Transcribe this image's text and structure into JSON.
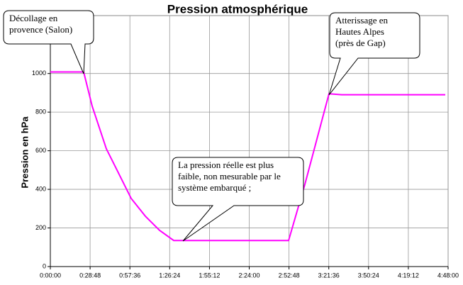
{
  "chart_data": {
    "type": "line",
    "title": "Pression atmosphérique",
    "ylabel": "Pression en hPa",
    "x": [
      0,
      1448,
      1817,
      2433,
      2895,
      3511,
      4127,
      4743,
      5360,
      10350,
      11058,
      12105,
      12660,
      17157
    ],
    "values": [
      1008,
      1008,
      831,
      610,
      500,
      353,
      261,
      188,
      135,
      135,
      426,
      895,
      890,
      890
    ],
    "color": "#ff00ff",
    "xlim": [
      0,
      17280
    ],
    "ylim": [
      0,
      1300
    ],
    "xticks": [
      {
        "value": 0,
        "label": "0:00:00"
      },
      {
        "value": 1728,
        "label": "0:28:48"
      },
      {
        "value": 3456,
        "label": "0:57:36"
      },
      {
        "value": 5184,
        "label": "1:26:24"
      },
      {
        "value": 6912,
        "label": "1:55:12"
      },
      {
        "value": 8640,
        "label": "2:24:00"
      },
      {
        "value": 10368,
        "label": "2:52:48"
      },
      {
        "value": 12096,
        "label": "3:21:36"
      },
      {
        "value": 13824,
        "label": "3:50:24"
      },
      {
        "value": 15552,
        "label": "4:19:12"
      },
      {
        "value": 17280,
        "label": "4:48:00"
      }
    ],
    "yticks": [
      0,
      200,
      400,
      600,
      800,
      1000
    ],
    "grid": true,
    "annotations": [
      {
        "lines": [
          "Décollage en",
          "provence (Salon)"
        ]
      },
      {
        "lines": [
          "Atterissage en",
          "Hautes Alpes",
          "(près de Gap)"
        ]
      },
      {
        "lines": [
          "La pression réelle est plus",
          "faible, non mesurable par le",
          "système embarqué ;"
        ]
      }
    ]
  }
}
